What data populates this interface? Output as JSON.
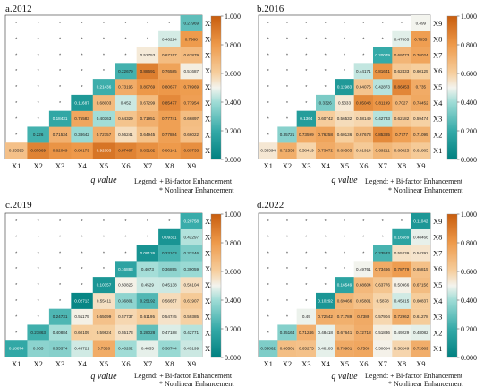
{
  "chart_data": [
    {
      "type": "heatmap",
      "title": "a.2012",
      "x_labels": [
        "X1",
        "X2",
        "X3",
        "X4",
        "X5",
        "X6",
        "X7",
        "X8",
        "X9"
      ],
      "y_labels": [
        "X1",
        "X2",
        "X3",
        "X4",
        "X5",
        "X6",
        "X7",
        "X8",
        "X9"
      ],
      "xlabel": "q value",
      "colorbar": {
        "min": 0,
        "max": 1,
        "ticks": [
          "0.000",
          "0.200",
          "0.400",
          "0.600",
          "0.800",
          "1.000"
        ]
      },
      "legend": [
        "Legend: + Bi-factor Enhancement",
        "* Nonlinear Enhancement"
      ],
      "values": [
        [
          0.65595,
          0.87669,
          0.82049,
          0.80179,
          0.92083,
          0.87407,
          0.83182,
          0.80141,
          0.83733
        ],
        [
          null,
          0.226,
          0.71534,
          0.38642,
          0.72757,
          0.56241,
          0.64945,
          0.77884,
          0.66022
        ],
        [
          null,
          null,
          0.18431,
          0.75583,
          0.40363,
          0.64329,
          0.71951,
          0.77741,
          0.66897
        ],
        [
          null,
          null,
          null,
          0.11687,
          0.68003,
          0.452,
          0.67299,
          0.85477,
          0.77954
        ],
        [
          null,
          null,
          null,
          null,
          0.21436,
          0.73195,
          0.80769,
          0.80677,
          0.78969
        ],
        [
          null,
          null,
          null,
          null,
          null,
          0.22679,
          0.88691,
          0.76585,
          0.51687
        ],
        [
          null,
          null,
          null,
          null,
          null,
          null,
          0.52753,
          0.67157,
          0.67879
        ],
        [
          null,
          null,
          null,
          null,
          null,
          null,
          null,
          0.46224,
          0.7968
        ],
        [
          null,
          null,
          null,
          null,
          null,
          null,
          null,
          null,
          0.27969
        ]
      ]
    },
    {
      "type": "heatmap",
      "title": "b.2016",
      "x_labels": [
        "X1",
        "X2",
        "X3",
        "X4",
        "X5",
        "X6",
        "X7",
        "X8",
        "X9"
      ],
      "y_labels": [
        "X1",
        "X2",
        "X3",
        "X4",
        "X5",
        "X6",
        "X7",
        "X8",
        "X9"
      ],
      "xlabel": "q value",
      "colorbar": {
        "min": 0,
        "max": 1,
        "ticks": [
          "0.000",
          "0.200",
          "0.400",
          "0.600",
          "0.800",
          "1.000"
        ]
      },
      "legend": [
        "Legend: + Bi-factor Enhancement",
        "* Nonlinear Enhancement"
      ],
      "values": [
        [
          0.53394,
          0.72536,
          0.58419,
          0.73672,
          0.69505,
          0.61914,
          0.69211,
          0.66025,
          0.61885
        ],
        [
          null,
          0.35721,
          0.73599,
          0.76258,
          0.60136,
          0.67673,
          0.85385,
          0.7777,
          0.71095
        ],
        [
          null,
          null,
          0.1364,
          0.60742,
          0.56532,
          0.58149,
          0.42733,
          0.62182,
          0.59474
        ],
        [
          null,
          null,
          null,
          0.3326,
          0.5333,
          0.85048,
          0.81199,
          0.7027,
          0.74452
        ],
        [
          null,
          null,
          null,
          null,
          0.11983,
          0.64076,
          0.42873,
          0.86453,
          0.735
        ],
        [
          null,
          null,
          null,
          null,
          null,
          0.44171,
          0.81641,
          0.62433,
          0.60125
        ],
        [
          null,
          null,
          null,
          null,
          null,
          null,
          0.20079,
          0.69773,
          0.76024
        ],
        [
          null,
          null,
          null,
          null,
          null,
          null,
          null,
          0.47805,
          0.7855
        ],
        [
          null,
          null,
          null,
          null,
          null,
          null,
          null,
          null,
          0.499
        ]
      ]
    },
    {
      "type": "heatmap",
      "title": "c.2019",
      "x_labels": [
        "X1",
        "X2",
        "X3",
        "X4",
        "X5",
        "X6",
        "X7",
        "X8",
        "X9"
      ],
      "y_labels": [
        "X1",
        "X2",
        "X3",
        "X4",
        "X5",
        "X6",
        "X7",
        "X8",
        "X9"
      ],
      "xlabel": "q value",
      "colorbar": {
        "min": 0,
        "max": 1,
        "ticks": [
          "0.000",
          "0.200",
          "0.400",
          "0.600",
          "0.800",
          "1.000"
        ]
      },
      "legend": [
        "Legend: + Bi-factor Enhancement",
        "* Nonlinear Enhancement"
      ],
      "values": [
        [
          0.18874,
          0.365,
          0.35374,
          0.45721,
          0.7328,
          0.40202,
          0.4835,
          0.38744,
          0.45199
        ],
        [
          null,
          0.21863,
          0.40884,
          0.60109,
          0.59824,
          0.55173,
          0.28028,
          0.47188,
          0.42771
        ],
        [
          null,
          null,
          0.24731,
          0.51175,
          0.65099,
          0.57737,
          0.61195,
          0.54745,
          0.59385
        ],
        [
          null,
          null,
          null,
          0.02713,
          0.55411,
          0.36801,
          0.25192,
          0.56657,
          0.61907
        ],
        [
          null,
          null,
          null,
          null,
          0.10357,
          0.50825,
          0.4529,
          0.45138,
          0.56104
        ],
        [
          null,
          null,
          null,
          null,
          null,
          0.16883,
          0.4073,
          0.36895,
          0.39059
        ],
        [
          null,
          null,
          null,
          null,
          null,
          null,
          0.09126,
          0.23103,
          0.33246
        ],
        [
          null,
          null,
          null,
          null,
          null,
          null,
          null,
          0.09311,
          0.42297
        ],
        [
          null,
          null,
          null,
          null,
          null,
          null,
          null,
          null,
          0.20758
        ]
      ]
    },
    {
      "type": "heatmap",
      "title": "d.2022",
      "x_labels": [
        "X1",
        "X2",
        "X3",
        "X4",
        "X5",
        "X6",
        "X7",
        "X8",
        "X9"
      ],
      "y_labels": [
        "X1",
        "X2",
        "X3",
        "X4",
        "X5",
        "X6",
        "X7",
        "X8",
        "X9"
      ],
      "xlabel": "q value",
      "colorbar": {
        "min": 0,
        "max": 1,
        "ticks": [
          "0.000",
          "0.200",
          "0.400",
          "0.600",
          "0.800",
          "1.000"
        ]
      },
      "legend": [
        "Legend: + Bi-factor Enhancement",
        "* Nonlinear Enhancement"
      ],
      "values": [
        [
          0.33862,
          0.66501,
          0.65275,
          0.48183,
          0.73901,
          0.7506,
          0.50684,
          0.58249,
          0.72689
        ],
        [
          null,
          0.35164,
          0.71246,
          0.48418,
          0.67641,
          0.72718,
          0.51836,
          0.49229,
          0.48082
        ],
        [
          null,
          null,
          0.49,
          0.72542,
          0.71789,
          0.7389,
          0.57904,
          0.72962,
          0.61278
        ],
        [
          null,
          null,
          null,
          0.10292,
          0.69466,
          0.65801,
          0.5878,
          0.45815,
          0.60837
        ],
        [
          null,
          null,
          null,
          null,
          0.16549,
          0.68604,
          0.63776,
          0.50966,
          0.67156
        ],
        [
          null,
          null,
          null,
          null,
          null,
          0.49761,
          0.73466,
          0.78779,
          0.65815
        ],
        [
          null,
          null,
          null,
          null,
          null,
          null,
          0.23533,
          0.55239,
          0.54292
        ],
        [
          null,
          null,
          null,
          null,
          null,
          null,
          null,
          0.16689,
          0.48466
        ],
        [
          null,
          null,
          null,
          null,
          null,
          null,
          null,
          null,
          0.11042
        ]
      ]
    }
  ]
}
